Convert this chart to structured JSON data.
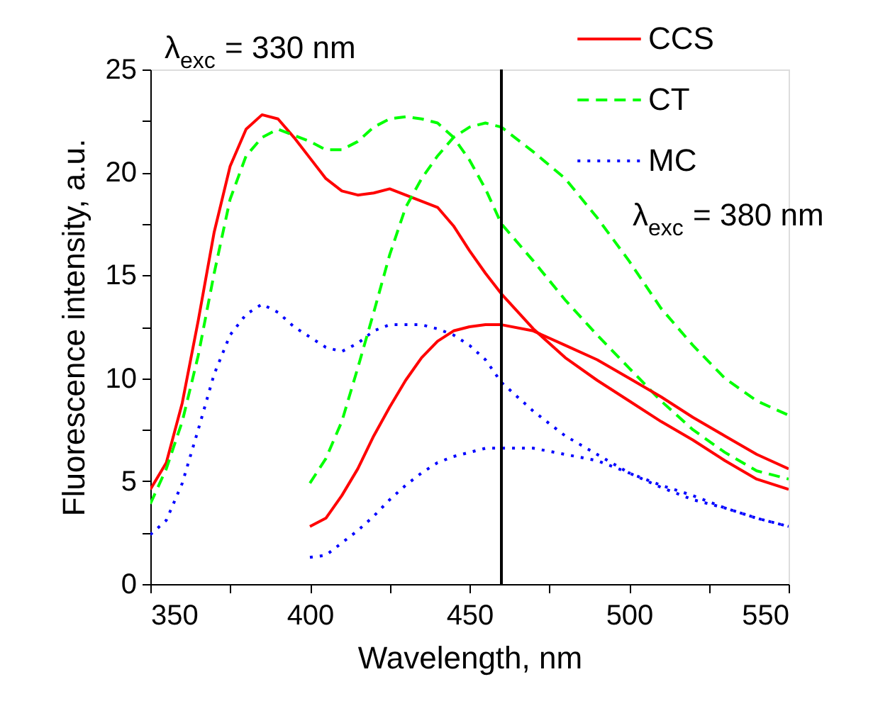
{
  "chart_data": {
    "type": "line",
    "xlabel": "Wavelength, nm",
    "ylabel": "Fluorescence intensity, a.u.",
    "annotations": [
      "λ$_{exc}$ = 330 nm",
      "λ$_{exc}$ = 380 nm"
    ],
    "xlim": [
      350,
      550
    ],
    "ylim": [
      0,
      25
    ],
    "xticks": [
      350,
      {
        "value": 375,
        "label": null
      },
      400,
      {
        "value": 425,
        "label": null
      },
      450,
      {
        "value": 475,
        "label": null
      },
      500,
      {
        "value": 525,
        "label": null
      },
      550
    ],
    "yticks": [
      0,
      {
        "value": 2.5,
        "label": null
      },
      5,
      {
        "value": 7.5,
        "label": null
      },
      10,
      {
        "value": 12.5,
        "label": null
      },
      15,
      {
        "value": 17.5,
        "label": null
      },
      20,
      {
        "value": 22.5,
        "label": null
      },
      25
    ],
    "grid": false,
    "legend": "top right",
    "marker": "none",
    "ref_lines": [
      {
        "axis": "x",
        "value": 460,
        "color": "#000000"
      }
    ],
    "series": [
      {
        "name": "CCS",
        "color": "#ff0000",
        "line_style": "solid",
        "x": [
          350,
          355,
          360,
          365,
          370,
          375,
          380,
          385,
          390,
          395,
          400,
          405,
          410,
          415,
          420,
          425,
          430,
          435,
          440,
          445,
          450,
          455,
          460,
          470,
          480,
          490,
          500,
          510,
          520,
          530,
          540,
          550
        ],
        "values": [
          4.6,
          5.9,
          8.8,
          12.8,
          17.1,
          20.3,
          22.1,
          22.8,
          22.6,
          21.7,
          20.7,
          19.7,
          19.1,
          18.9,
          19.0,
          19.2,
          18.9,
          18.6,
          18.3,
          17.4,
          16.2,
          15.1,
          14.1,
          12.4,
          11.0,
          9.9,
          8.9,
          7.9,
          7.0,
          6.0,
          5.1,
          4.6
        ]
      },
      {
        "name": "CT",
        "color": "#00ff00",
        "line_style": "dashed",
        "x": [
          350,
          355,
          360,
          365,
          370,
          375,
          380,
          385,
          390,
          395,
          400,
          405,
          410,
          415,
          420,
          425,
          430,
          435,
          440,
          445,
          450,
          455,
          460,
          470,
          480,
          490,
          500,
          510,
          520,
          530,
          540,
          550
        ],
        "values": [
          3.9,
          5.6,
          7.9,
          11.1,
          15.1,
          18.7,
          20.8,
          21.7,
          22.1,
          21.8,
          21.5,
          21.1,
          21.1,
          21.5,
          22.2,
          22.6,
          22.7,
          22.6,
          22.4,
          21.7,
          20.6,
          19.2,
          17.5,
          15.7,
          13.8,
          12.1,
          10.5,
          8.9,
          7.5,
          6.4,
          5.5,
          5.1
        ]
      },
      {
        "name": "MC",
        "color": "#0000ff",
        "line_style": "dotted",
        "x": [
          350,
          355,
          360,
          365,
          370,
          375,
          380,
          385,
          390,
          395,
          400,
          405,
          410,
          415,
          420,
          425,
          430,
          435,
          440,
          445,
          450,
          455,
          460,
          470,
          480,
          490,
          500,
          510,
          520,
          530,
          540,
          550
        ],
        "values": [
          2.4,
          3.1,
          4.9,
          7.5,
          10.2,
          12.1,
          13.1,
          13.6,
          13.2,
          12.5,
          12.0,
          11.5,
          11.3,
          11.7,
          12.3,
          12.6,
          12.6,
          12.6,
          12.4,
          12.1,
          11.6,
          10.9,
          9.8,
          8.4,
          7.2,
          6.3,
          5.4,
          4.7,
          4.1,
          3.7,
          3.2,
          2.8
        ]
      },
      {
        "color": "#ff0000",
        "line_style": "solid",
        "x": [
          400,
          405,
          410,
          415,
          420,
          425,
          430,
          435,
          440,
          445,
          450,
          455,
          460,
          470,
          480,
          490,
          500,
          510,
          520,
          530,
          540,
          550
        ],
        "values": [
          2.8,
          3.2,
          4.3,
          5.6,
          7.2,
          8.6,
          9.9,
          11.0,
          11.8,
          12.3,
          12.5,
          12.6,
          12.6,
          12.3,
          11.6,
          10.9,
          10.0,
          9.1,
          8.1,
          7.2,
          6.3,
          5.6
        ]
      },
      {
        "color": "#00ff00",
        "line_style": "dashed",
        "x": [
          400,
          405,
          410,
          415,
          420,
          425,
          430,
          435,
          440,
          445,
          450,
          455,
          460,
          470,
          480,
          490,
          500,
          510,
          520,
          530,
          540,
          550
        ],
        "values": [
          4.9,
          6.1,
          7.9,
          10.5,
          13.2,
          16.0,
          18.3,
          19.7,
          20.8,
          21.7,
          22.2,
          22.4,
          22.2,
          21.0,
          19.7,
          17.8,
          15.7,
          13.4,
          11.6,
          10.0,
          8.9,
          8.2
        ]
      },
      {
        "color": "#0000ff",
        "line_style": "dotted",
        "x": [
          400,
          405,
          410,
          415,
          420,
          425,
          430,
          435,
          440,
          445,
          450,
          455,
          460,
          470,
          480,
          490,
          500,
          510,
          520,
          530,
          540,
          550
        ],
        "values": [
          1.3,
          1.4,
          2.0,
          2.6,
          3.3,
          4.1,
          4.8,
          5.4,
          5.9,
          6.2,
          6.4,
          6.6,
          6.6,
          6.6,
          6.3,
          6.0,
          5.4,
          4.8,
          4.3,
          3.7,
          3.2,
          2.8
        ]
      }
    ]
  }
}
